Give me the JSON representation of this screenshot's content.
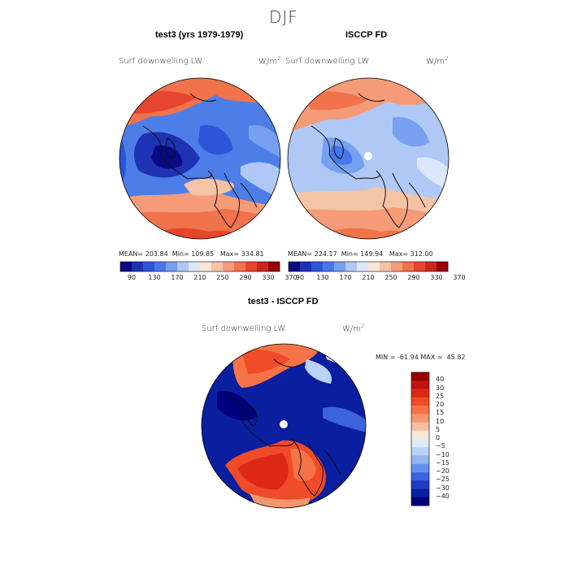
{
  "season": "DJF",
  "panels": [
    {
      "title": "test3 (yrs 1979-1979)",
      "variable": "Surf downwelling LW",
      "units_base": "W/m",
      "units_exp": "2",
      "stats": {
        "mean_label": "MEAN=",
        "mean": "203.84",
        "min_label": "Min=",
        "min": "109.85",
        "max_label": "Max=",
        "max": "334.81"
      }
    },
    {
      "title": "ISCCP FD",
      "variable": "Surf downwelling LW",
      "units_base": "W/m",
      "units_exp": "2",
      "stats": {
        "mean_label": "MEAN=",
        "mean": "224.17",
        "min_label": "Min=",
        "min": "149.94",
        "max_label": "Max=",
        "max": "312.00"
      }
    }
  ],
  "colorbar": {
    "ticks": [
      "90",
      "130",
      "170",
      "210",
      "250",
      "290",
      "330",
      "370"
    ],
    "colors": [
      "#0a0a82",
      "#1e32b4",
      "#2d55d7",
      "#4678eb",
      "#78a0f0",
      "#afc8f5",
      "#dce8fa",
      "#fae6d7",
      "#f5c3a5",
      "#f59b78",
      "#f0734b",
      "#e6462d",
      "#c8281e",
      "#96000a"
    ]
  },
  "diff_panel": {
    "title": "test3 - ISCCP FD",
    "variable": "Surf downwelling LW",
    "units_base": "W/m",
    "units_exp": "2",
    "stats": {
      "min_label": "MIN =",
      "min": "-61.94",
      "max_label": "MAX =",
      "max": "45.82"
    },
    "legend_labels": [
      "40",
      "30",
      "25",
      "20",
      "15",
      "10",
      "5",
      "0",
      "−5",
      "−10",
      "−15",
      "−20",
      "−25",
      "−30",
      "−40"
    ],
    "legend_colors": [
      "#960000",
      "#c31414",
      "#dc2814",
      "#f04b28",
      "#f57346",
      "#f5966e",
      "#f5bea0",
      "#fae6d7",
      "#dceafa",
      "#b9d2f5",
      "#91b4f0",
      "#6490eb",
      "#3c64dc",
      "#1e3cc3",
      "#0a1ea0",
      "#00007d"
    ]
  }
}
